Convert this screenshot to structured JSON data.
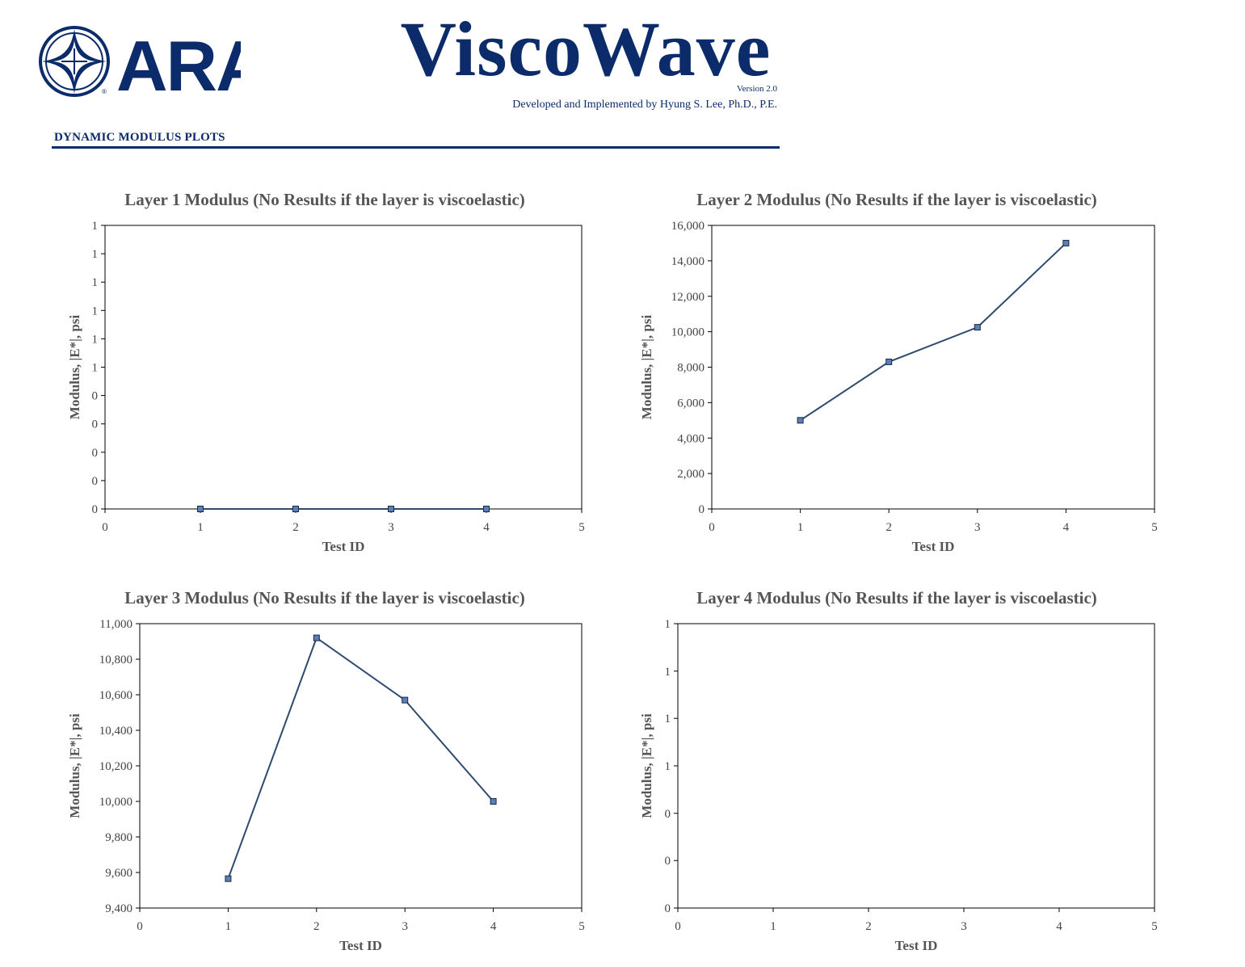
{
  "header": {
    "logo_text": "ARA",
    "app_title": "ViscoWave",
    "version": "Version 2.0",
    "credit": "Developed and Implemented by Hyung S. Lee, Ph.D., P.E.",
    "section_title": "DYNAMIC MODULUS PLOTS"
  },
  "colors": {
    "brand": "#0b2b6b",
    "series_line": "#2e4a6e",
    "marker_fill": "#5a7fb5"
  },
  "chart_data": [
    {
      "type": "line",
      "title": "Layer 1 Modulus (No Results if the layer is viscoelastic)",
      "xlabel": "Test ID",
      "ylabel": "Modulus, |E*|, psi",
      "xlim": [
        0,
        5
      ],
      "ylim": [
        0,
        1
      ],
      "xticks": [
        0,
        1,
        2,
        3,
        4,
        5
      ],
      "yticks": [
        0,
        0.1,
        0.2,
        0.3,
        0.4,
        0.5,
        0.6,
        0.7,
        0.8,
        0.9,
        1.0
      ],
      "ytick_labels": [
        "0",
        "0",
        "0",
        "0",
        "0",
        "1",
        "1",
        "1",
        "1",
        "1",
        "1"
      ],
      "series": [
        {
          "name": "Layer 1",
          "x": [
            1,
            2,
            3,
            4
          ],
          "values": [
            0,
            0,
            0,
            0
          ]
        }
      ]
    },
    {
      "type": "line",
      "title": "Layer 2 Modulus (No Results if the layer is viscoelastic)",
      "xlabel": "Test ID",
      "ylabel": "Modulus, |E*|, psi",
      "xlim": [
        0,
        5
      ],
      "ylim": [
        0,
        16000
      ],
      "xticks": [
        0,
        1,
        2,
        3,
        4,
        5
      ],
      "yticks": [
        0,
        2000,
        4000,
        6000,
        8000,
        10000,
        12000,
        14000,
        16000
      ],
      "ytick_labels": [
        "0",
        "2,000",
        "4,000",
        "6,000",
        "8,000",
        "10,000",
        "12,000",
        "14,000",
        "16,000"
      ],
      "series": [
        {
          "name": "Layer 2",
          "x": [
            1,
            2,
            3,
            4
          ],
          "values": [
            5000,
            8300,
            10250,
            15000
          ]
        }
      ]
    },
    {
      "type": "line",
      "title": "Layer 3 Modulus (No Results if the layer is viscoelastic)",
      "xlabel": "Test ID",
      "ylabel": "Modulus, |E*|, psi",
      "xlim": [
        0,
        5
      ],
      "ylim": [
        9400,
        11000
      ],
      "xticks": [
        0,
        1,
        2,
        3,
        4,
        5
      ],
      "yticks": [
        9400,
        9600,
        9800,
        10000,
        10200,
        10400,
        10600,
        10800,
        11000
      ],
      "ytick_labels": [
        "9,400",
        "9,600",
        "9,800",
        "10,000",
        "10,200",
        "10,400",
        "10,600",
        "10,800",
        "11,000"
      ],
      "series": [
        {
          "name": "Layer 3",
          "x": [
            1,
            2,
            3,
            4
          ],
          "values": [
            9565,
            10920,
            10570,
            10000
          ]
        }
      ]
    },
    {
      "type": "line",
      "title": "Layer 4 Modulus (No Results if the layer is viscoelastic)",
      "xlabel": "Test ID",
      "ylabel": "Modulus, |E*|, psi",
      "xlim": [
        0,
        5
      ],
      "ylim": [
        0,
        1
      ],
      "xticks": [
        0,
        1,
        2,
        3,
        4,
        5
      ],
      "yticks": [
        0,
        0.167,
        0.333,
        0.5,
        0.667,
        0.833,
        1.0
      ],
      "ytick_labels": [
        "0",
        "0",
        "0",
        "1",
        "1",
        "1",
        "1"
      ],
      "series": []
    }
  ]
}
